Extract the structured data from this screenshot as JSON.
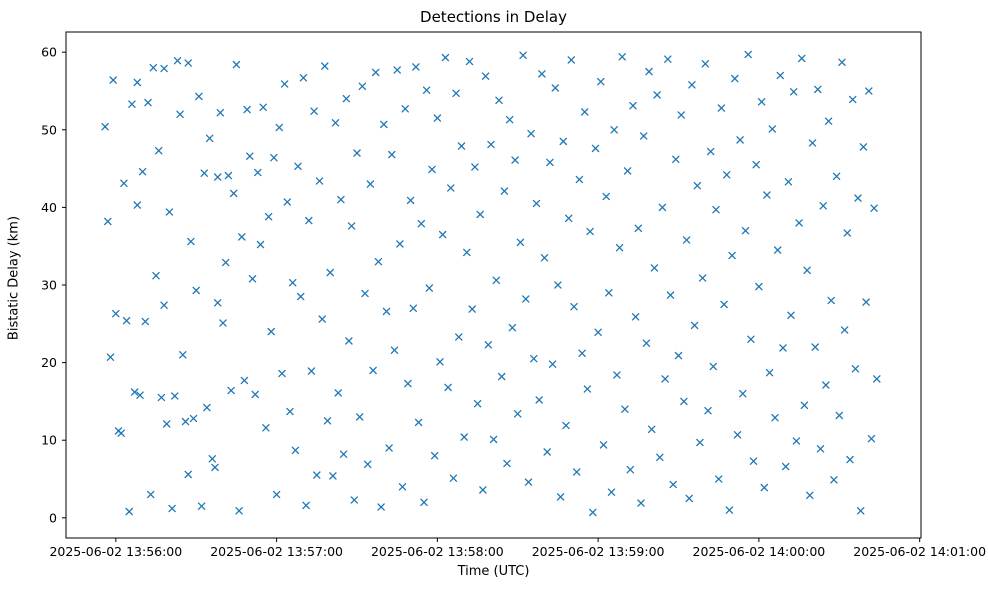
{
  "chart_data": {
    "type": "scatter",
    "title": "Detections in Delay",
    "xlabel": "Time (UTC)",
    "ylabel": "Bistatic Delay (km)",
    "marker": "x",
    "marker_color": "#1f77b4",
    "background_color": "#ffffff",
    "axes_color": "#000000",
    "x_tick_labels": [
      "2025-06-02 13:56:00",
      "2025-06-02 13:57:00",
      "2025-06-02 13:58:00",
      "2025-06-02 13:59:00",
      "2025-06-02 14:00:00",
      "2025-06-02 14:01:00"
    ],
    "x_ticks": [
      0,
      60,
      120,
      180,
      240,
      300
    ],
    "xlim_seconds": [
      -18.6,
      300.5
    ],
    "y_ticks": [
      0,
      10,
      20,
      30,
      40,
      50,
      60
    ],
    "ylim": [
      -2.6,
      62.6
    ],
    "grid": false,
    "legend": "none",
    "x_unit": "seconds after 2025-06-02 13:56:00 UTC",
    "points": [
      [
        -4,
        50.4
      ],
      [
        -3,
        38.2
      ],
      [
        -2,
        20.7
      ],
      [
        -1,
        56.4
      ],
      [
        0,
        26.3
      ],
      [
        1,
        11.2
      ],
      [
        2,
        10.9
      ],
      [
        3,
        43.1
      ],
      [
        4,
        25.4
      ],
      [
        5,
        0.8
      ],
      [
        6,
        53.3
      ],
      [
        7,
        16.2
      ],
      [
        8,
        40.3
      ],
      [
        8,
        56.1
      ],
      [
        9,
        15.8
      ],
      [
        10,
        44.6
      ],
      [
        11,
        25.3
      ],
      [
        12,
        53.5
      ],
      [
        13,
        3.0
      ],
      [
        14,
        58.0
      ],
      [
        15,
        31.2
      ],
      [
        16,
        47.3
      ],
      [
        17,
        15.5
      ],
      [
        18,
        27.4
      ],
      [
        18,
        57.9
      ],
      [
        19,
        12.1
      ],
      [
        20,
        39.4
      ],
      [
        21,
        1.2
      ],
      [
        22,
        15.7
      ],
      [
        23,
        58.9
      ],
      [
        24,
        52.0
      ],
      [
        25,
        21.0
      ],
      [
        26,
        12.4
      ],
      [
        27,
        58.6
      ],
      [
        27,
        5.6
      ],
      [
        28,
        35.6
      ],
      [
        29,
        12.8
      ],
      [
        30,
        29.3
      ],
      [
        31,
        54.3
      ],
      [
        32,
        1.5
      ],
      [
        33,
        44.4
      ],
      [
        34,
        14.2
      ],
      [
        35,
        48.9
      ],
      [
        36,
        7.6
      ],
      [
        37,
        6.5
      ],
      [
        38,
        43.9
      ],
      [
        38,
        27.7
      ],
      [
        39,
        52.2
      ],
      [
        40,
        25.1
      ],
      [
        41,
        32.9
      ],
      [
        42,
        44.1
      ],
      [
        43,
        16.4
      ],
      [
        44,
        41.8
      ],
      [
        45,
        58.4
      ],
      [
        46,
        0.9
      ],
      [
        47,
        36.2
      ],
      [
        48,
        17.7
      ],
      [
        49,
        52.6
      ],
      [
        50,
        46.6
      ],
      [
        51,
        30.8
      ],
      [
        52,
        15.9
      ],
      [
        53,
        44.5
      ],
      [
        54,
        35.2
      ],
      [
        55,
        52.9
      ],
      [
        56,
        11.6
      ],
      [
        57,
        38.8
      ],
      [
        58,
        24.0
      ],
      [
        59,
        46.4
      ],
      [
        60,
        3.0
      ],
      [
        61,
        50.3
      ],
      [
        62,
        18.6
      ],
      [
        63,
        55.9
      ],
      [
        64,
        40.7
      ],
      [
        65,
        13.7
      ],
      [
        66,
        30.3
      ],
      [
        67,
        8.7
      ],
      [
        68,
        45.3
      ],
      [
        69,
        28.5
      ],
      [
        70,
        56.7
      ],
      [
        71,
        1.6
      ],
      [
        72,
        38.3
      ],
      [
        73,
        18.9
      ],
      [
        74,
        52.4
      ],
      [
        75,
        5.5
      ],
      [
        76,
        43.4
      ],
      [
        77,
        25.6
      ],
      [
        78,
        58.2
      ],
      [
        79,
        12.5
      ],
      [
        80,
        31.6
      ],
      [
        81,
        5.4
      ],
      [
        82,
        50.9
      ],
      [
        83,
        16.1
      ],
      [
        84,
        41.0
      ],
      [
        85,
        8.2
      ],
      [
        86,
        54.0
      ],
      [
        87,
        22.8
      ],
      [
        88,
        37.6
      ],
      [
        89,
        2.3
      ],
      [
        90,
        47.0
      ],
      [
        91,
        13.0
      ],
      [
        92,
        55.6
      ],
      [
        93,
        28.9
      ],
      [
        94,
        6.9
      ],
      [
        95,
        43.0
      ],
      [
        96,
        19.0
      ],
      [
        97,
        57.4
      ],
      [
        98,
        33.0
      ],
      [
        99,
        1.4
      ],
      [
        100,
        50.7
      ],
      [
        101,
        26.6
      ],
      [
        102,
        9.0
      ],
      [
        103,
        46.8
      ],
      [
        104,
        21.6
      ],
      [
        105,
        57.7
      ],
      [
        106,
        35.3
      ],
      [
        107,
        4.0
      ],
      [
        108,
        52.7
      ],
      [
        109,
        17.3
      ],
      [
        110,
        40.9
      ],
      [
        111,
        27.0
      ],
      [
        112,
        58.1
      ],
      [
        113,
        12.3
      ],
      [
        114,
        37.9
      ],
      [
        115,
        2.0
      ],
      [
        116,
        55.1
      ],
      [
        117,
        29.6
      ],
      [
        118,
        44.9
      ],
      [
        119,
        8.0
      ],
      [
        120,
        51.5
      ],
      [
        121,
        20.1
      ],
      [
        122,
        36.5
      ],
      [
        123,
        59.3
      ],
      [
        124,
        16.8
      ],
      [
        125,
        42.5
      ],
      [
        126,
        5.1
      ],
      [
        127,
        54.7
      ],
      [
        128,
        23.3
      ],
      [
        129,
        47.9
      ],
      [
        130,
        10.4
      ],
      [
        131,
        34.2
      ],
      [
        132,
        58.8
      ],
      [
        133,
        26.9
      ],
      [
        134,
        45.2
      ],
      [
        135,
        14.7
      ],
      [
        136,
        39.1
      ],
      [
        137,
        3.6
      ],
      [
        138,
        56.9
      ],
      [
        139,
        22.3
      ],
      [
        140,
        48.1
      ],
      [
        141,
        10.1
      ],
      [
        142,
        30.6
      ],
      [
        143,
        53.8
      ],
      [
        144,
        18.2
      ],
      [
        145,
        42.1
      ],
      [
        146,
        7.0
      ],
      [
        147,
        51.3
      ],
      [
        148,
        24.5
      ],
      [
        149,
        46.1
      ],
      [
        150,
        13.4
      ],
      [
        151,
        35.5
      ],
      [
        152,
        59.6
      ],
      [
        153,
        28.2
      ],
      [
        154,
        4.6
      ],
      [
        155,
        49.5
      ],
      [
        156,
        20.5
      ],
      [
        157,
        40.5
      ],
      [
        158,
        15.2
      ],
      [
        159,
        57.2
      ],
      [
        160,
        33.5
      ],
      [
        161,
        8.5
      ],
      [
        162,
        45.8
      ],
      [
        163,
        19.8
      ],
      [
        164,
        55.4
      ],
      [
        165,
        30.0
      ],
      [
        166,
        2.7
      ],
      [
        167,
        48.5
      ],
      [
        168,
        11.9
      ],
      [
        169,
        38.6
      ],
      [
        170,
        59.0
      ],
      [
        171,
        27.2
      ],
      [
        172,
        5.9
      ],
      [
        173,
        43.6
      ],
      [
        174,
        21.2
      ],
      [
        175,
        52.3
      ],
      [
        176,
        16.6
      ],
      [
        177,
        36.9
      ],
      [
        178,
        0.7
      ],
      [
        179,
        47.6
      ],
      [
        180,
        23.9
      ],
      [
        181,
        56.2
      ],
      [
        182,
        9.4
      ],
      [
        183,
        41.4
      ],
      [
        184,
        29.0
      ],
      [
        185,
        3.3
      ],
      [
        186,
        50.0
      ],
      [
        187,
        18.4
      ],
      [
        188,
        34.8
      ],
      [
        189,
        59.4
      ],
      [
        190,
        14.0
      ],
      [
        191,
        44.7
      ],
      [
        192,
        6.2
      ],
      [
        193,
        53.1
      ],
      [
        194,
        25.9
      ],
      [
        195,
        37.3
      ],
      [
        196,
        1.9
      ],
      [
        197,
        49.2
      ],
      [
        198,
        22.5
      ],
      [
        199,
        57.5
      ],
      [
        200,
        11.4
      ],
      [
        201,
        32.2
      ],
      [
        202,
        54.5
      ],
      [
        203,
        7.8
      ],
      [
        204,
        40.0
      ],
      [
        205,
        17.9
      ],
      [
        206,
        59.1
      ],
      [
        207,
        28.7
      ],
      [
        208,
        4.3
      ],
      [
        209,
        46.2
      ],
      [
        210,
        20.9
      ],
      [
        211,
        51.9
      ],
      [
        212,
        15.0
      ],
      [
        213,
        35.8
      ],
      [
        214,
        2.5
      ],
      [
        215,
        55.8
      ],
      [
        216,
        24.8
      ],
      [
        217,
        42.8
      ],
      [
        218,
        9.7
      ],
      [
        219,
        30.9
      ],
      [
        220,
        58.5
      ],
      [
        221,
        13.8
      ],
      [
        222,
        47.2
      ],
      [
        223,
        19.5
      ],
      [
        224,
        39.7
      ],
      [
        225,
        5.0
      ],
      [
        226,
        52.8
      ],
      [
        227,
        27.5
      ],
      [
        228,
        44.2
      ],
      [
        229,
        1.0
      ],
      [
        230,
        33.8
      ],
      [
        231,
        56.6
      ],
      [
        232,
        10.7
      ],
      [
        233,
        48.7
      ],
      [
        234,
        16.0
      ],
      [
        235,
        37.0
      ],
      [
        236,
        59.7
      ],
      [
        237,
        23.0
      ],
      [
        238,
        7.3
      ],
      [
        239,
        45.5
      ],
      [
        240,
        29.8
      ],
      [
        241,
        53.6
      ],
      [
        242,
        3.9
      ],
      [
        243,
        41.6
      ],
      [
        244,
        18.7
      ],
      [
        245,
        50.1
      ],
      [
        246,
        12.9
      ],
      [
        247,
        34.5
      ],
      [
        248,
        57.0
      ],
      [
        249,
        21.9
      ],
      [
        250,
        6.6
      ],
      [
        251,
        43.3
      ],
      [
        252,
        26.1
      ],
      [
        253,
        54.9
      ],
      [
        254,
        9.9
      ],
      [
        255,
        38.0
      ],
      [
        256,
        59.2
      ],
      [
        257,
        14.5
      ],
      [
        258,
        31.9
      ],
      [
        259,
        2.9
      ],
      [
        260,
        48.3
      ],
      [
        261,
        22.0
      ],
      [
        262,
        55.2
      ],
      [
        263,
        8.9
      ],
      [
        264,
        40.2
      ],
      [
        265,
        17.1
      ],
      [
        266,
        51.1
      ],
      [
        267,
        28.0
      ],
      [
        268,
        4.9
      ],
      [
        269,
        44.0
      ],
      [
        270,
        13.2
      ],
      [
        271,
        58.7
      ],
      [
        272,
        24.2
      ],
      [
        273,
        36.7
      ],
      [
        274,
        7.5
      ],
      [
        275,
        53.9
      ],
      [
        276,
        19.2
      ],
      [
        277,
        41.2
      ],
      [
        278,
        0.9
      ],
      [
        279,
        47.8
      ],
      [
        280,
        27.8
      ],
      [
        281,
        55.0
      ],
      [
        282,
        10.2
      ],
      [
        283,
        39.9
      ],
      [
        284,
        17.9
      ]
    ]
  }
}
